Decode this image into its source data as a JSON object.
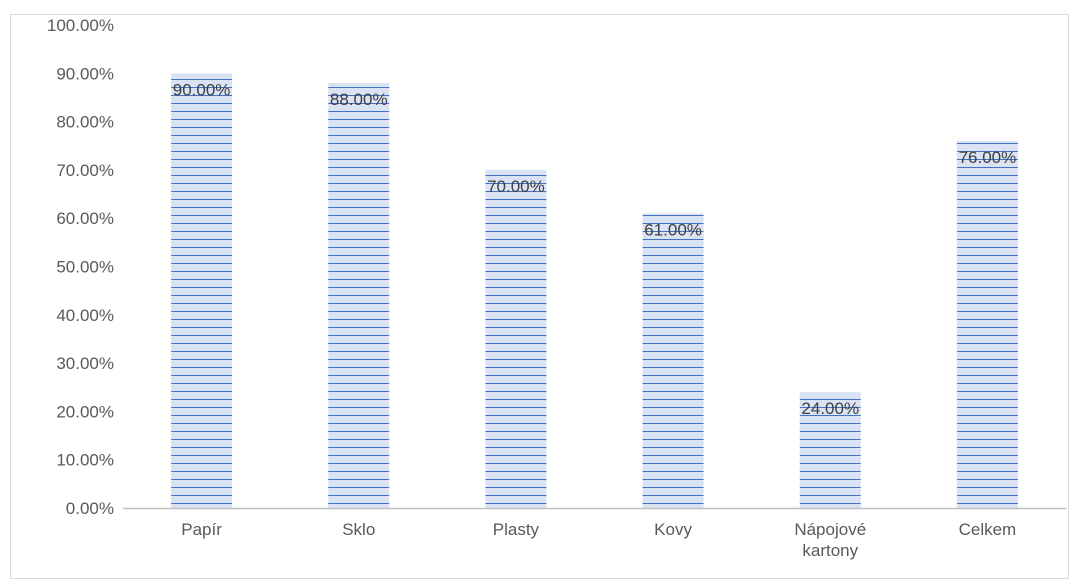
{
  "chart_data": {
    "type": "bar",
    "title": "",
    "xlabel": "",
    "ylabel": "",
    "categories": [
      [
        "Papír"
      ],
      [
        "Sklo"
      ],
      [
        "Plasty"
      ],
      [
        "Kovy"
      ],
      [
        "Nápojové",
        "kartony"
      ],
      [
        "Celkem"
      ]
    ],
    "values": [
      90,
      88,
      70,
      61,
      24,
      76
    ],
    "data_labels": [
      "90.00%",
      "88.00%",
      "70.00%",
      "61.00%",
      "24.00%",
      "76.00%"
    ],
    "ylim": [
      0,
      100
    ],
    "y_ticks": [
      0,
      10,
      20,
      30,
      40,
      50,
      60,
      70,
      80,
      90,
      100
    ],
    "y_tick_labels": [
      "0.00%",
      "10.00%",
      "20.00%",
      "30.00%",
      "40.00%",
      "50.00%",
      "60.00%",
      "70.00%",
      "80.00%",
      "90.00%",
      "100.00%"
    ],
    "grid": false,
    "legend": "none",
    "colors": {
      "bar_fill": "#dae3f3",
      "bar_stripe": "#4472c4",
      "axis": "#bfbfbf"
    }
  }
}
